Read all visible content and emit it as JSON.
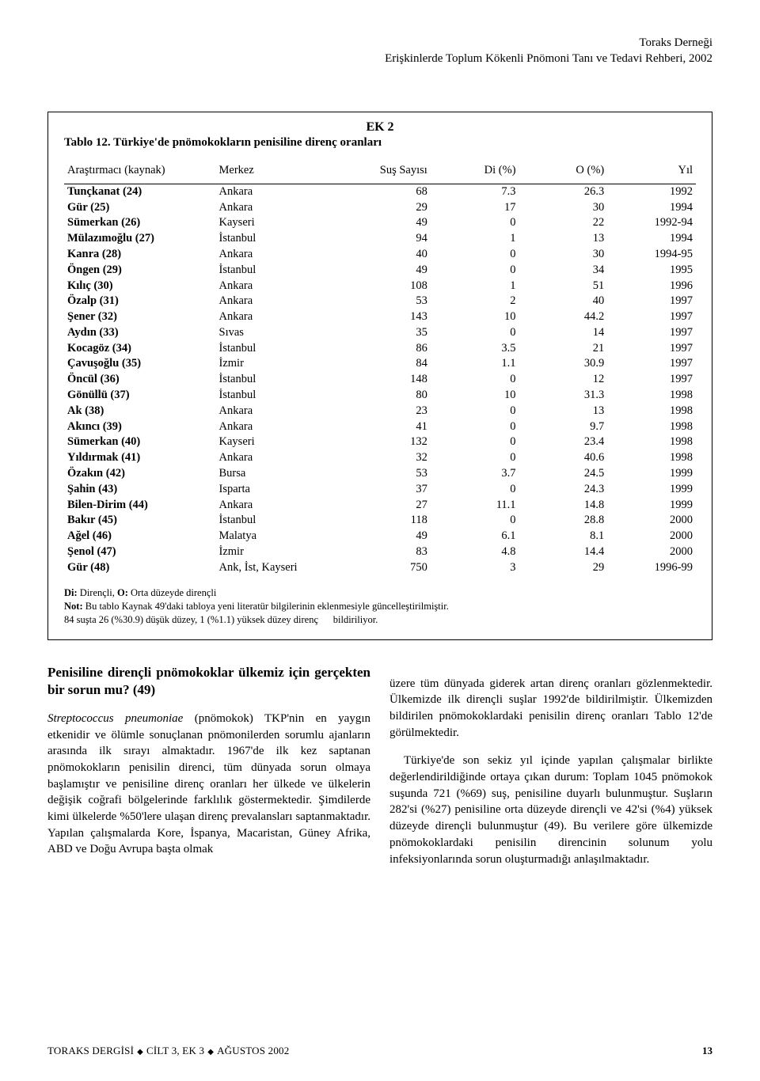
{
  "header": {
    "line1": "Toraks Derneği",
    "line2": "Erişkinlerde Toplum Kökenli Pnömoni Tanı ve Tedavi Rehberi, 2002"
  },
  "table": {
    "type": "table",
    "ek_label": "EK 2",
    "title": "Tablo 12. Türkiye'de pnömokokların penisiline direnç oranları",
    "background_color": "#ffffff",
    "border_color": "#000000",
    "font_family": "serif",
    "header_fontsize": 14.5,
    "body_fontsize": 14.5,
    "col_widths_pct": [
      24,
      20,
      14,
      14,
      14,
      14
    ],
    "col_align": [
      "left",
      "left",
      "right",
      "right",
      "right",
      "right"
    ],
    "columns": [
      "Araştırmacı (kaynak)",
      "Merkez",
      "Suş Sayısı",
      "Di (%)",
      "O (%)",
      "Yıl"
    ],
    "rows": [
      [
        "Tunçkanat (24)",
        "Ankara",
        "68",
        "7.3",
        "26.3",
        "1992"
      ],
      [
        "Gür (25)",
        "Ankara",
        "29",
        "17",
        "30",
        "1994"
      ],
      [
        "Sümerkan (26)",
        "Kayseri",
        "49",
        "0",
        "22",
        "1992-94"
      ],
      [
        "Mülazımoğlu (27)",
        "İstanbul",
        "94",
        "1",
        "13",
        "1994"
      ],
      [
        "Kanra (28)",
        "Ankara",
        "40",
        "0",
        "30",
        "1994-95"
      ],
      [
        "Öngen (29)",
        "İstanbul",
        "49",
        "0",
        "34",
        "1995"
      ],
      [
        "Kılıç (30)",
        "Ankara",
        "108",
        "1",
        "51",
        "1996"
      ],
      [
        "Özalp (31)",
        "Ankara",
        "53",
        "2",
        "40",
        "1997"
      ],
      [
        "Şener (32)",
        "Ankara",
        "143",
        "10",
        "44.2",
        "1997"
      ],
      [
        "Aydın (33)",
        "Sıvas",
        "35",
        "0",
        "14",
        "1997"
      ],
      [
        "Kocagöz (34)",
        "İstanbul",
        "86",
        "3.5",
        "21",
        "1997"
      ],
      [
        "Çavuşoğlu (35)",
        "İzmir",
        "84",
        "1.1",
        "30.9",
        "1997"
      ],
      [
        "Öncül (36)",
        "İstanbul",
        "148",
        "0",
        "12",
        "1997"
      ],
      [
        "Gönüllü (37)",
        "İstanbul",
        "80",
        "10",
        "31.3",
        "1998"
      ],
      [
        "Ak (38)",
        "Ankara",
        "23",
        "0",
        "13",
        "1998"
      ],
      [
        "Akıncı (39)",
        "Ankara",
        "41",
        "0",
        "9.7",
        "1998"
      ],
      [
        "Sümerkan (40)",
        "Kayseri",
        "132",
        "0",
        "23.4",
        "1998"
      ],
      [
        "Yıldırmak (41)",
        "Ankara",
        "32",
        "0",
        "40.6",
        "1998"
      ],
      [
        "Özakın (42)",
        "Bursa",
        "53",
        "3.7",
        "24.5",
        "1999"
      ],
      [
        "Şahin (43)",
        "Isparta",
        "37",
        "0",
        "24.3",
        "1999"
      ],
      [
        "Bilen-Dirim (44)",
        "Ankara",
        "27",
        "11.1",
        "14.8",
        "1999"
      ],
      [
        "Bakır (45)",
        "İstanbul",
        "118",
        "0",
        "28.8",
        "2000"
      ],
      [
        "Ağel (46)",
        "Malatya",
        "49",
        "6.1",
        "8.1",
        "2000"
      ],
      [
        "Şenol (47)",
        "İzmir",
        "83",
        "4.8",
        "14.4",
        "2000"
      ],
      [
        "Gür (48)",
        "Ank, İst, Kayseri",
        "750",
        "3",
        "29",
        "1996-99"
      ]
    ],
    "footnote1_label": "Di:",
    "footnote1_a": " Dirençli, ",
    "footnote1_label2": "O:",
    "footnote1_b": " Orta düzeyde dirençli",
    "footnote2_label": "Not:",
    "footnote2": " Bu tablo Kaynak 49'daki tabloya yeni literatür bilgilerinin eklenmesiyle güncelleştirilmiştir.",
    "footnote3a": "84 suşta 26 (%30.9) düşük düzey, 1 (%1.1) yüksek düzey direnç",
    "footnote3b": "bildiriliyor."
  },
  "body": {
    "heading": "Penisiline dirençli pnömokoklar ülkemiz için gerçekten bir sorun mu? (49)",
    "left_ital": "Streptococcus pneumoniae",
    "left_text": " (pnömokok) TKP'nin en yaygın etkenidir ve ölümle sonuçlanan pnömonilerden sorumlu ajanların arasında ilk sırayı almaktadır. 1967'de ilk kez saptanan pnömokokların penisilin direnci, tüm dünyada sorun olmaya başlamıştır ve penisiline direnç oranları her ülkede ve ülkelerin değişik coğrafi bölgelerinde farklılık göstermektedir. Şimdilerde kimi ülkelerde %50'lere ulaşan direnç prevalansları saptanmaktadır. Yapılan çalışmalarda Kore, İspanya, Macaristan, Güney Afrika, ABD ve Doğu Avrupa başta olmak",
    "right_p1": "üzere tüm dünyada giderek artan direnç oranları gözlenmektedir. Ülkemizde ilk dirençli suşlar 1992'de bildirilmiştir. Ülkemizden bildirilen pnömokoklardaki penisilin direnç oranları Tablo 12'de görülmektedir.",
    "right_p2": "Türkiye'de son sekiz yıl içinde yapılan çalışmalar birlikte değerlendirildiğinde ortaya çıkan durum: Toplam 1045 pnömokok suşunda 721 (%69) suş, penisiline duyarlı bulunmuştur. Suşların 282'si (%27) penisiline orta düzeyde dirençli ve 42'si (%4) yüksek düzeyde dirençli bulunmuştur (49). Bu verilere göre ülkemizde pnömokoklardaki penisilin direncinin solunum yolu infeksiyonlarında sorun oluşturmadığı anlaşılmaktadır."
  },
  "footer": {
    "left_a": "TORAKS DERGİSİ",
    "left_b": "CİLT 3, EK 3",
    "left_c": "AĞUSTOS 2002",
    "page": "13"
  }
}
